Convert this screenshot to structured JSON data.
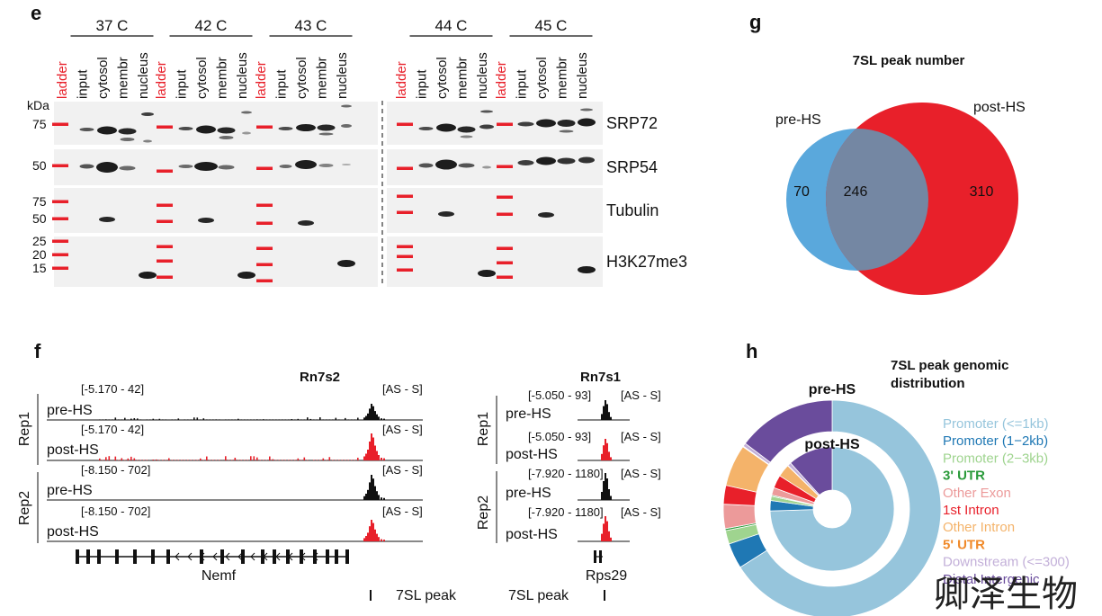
{
  "panel_e": {
    "letter": "e",
    "kda_label": "kDa",
    "temperature_groups": [
      {
        "label": "37 C",
        "lanes": [
          "ladder",
          "input",
          "cytosol",
          "membr",
          "nucleus"
        ]
      },
      {
        "label": "42 C",
        "lanes": [
          "ladder",
          "input",
          "cytosol",
          "membr",
          "nucleus"
        ]
      },
      {
        "label": "43 C",
        "lanes": [
          "ladder",
          "input",
          "cytosol",
          "membr",
          "nucleus"
        ]
      },
      {
        "label": "44 C",
        "lanes": [
          "ladder",
          "input",
          "cytosol",
          "membr",
          "nucleus"
        ]
      },
      {
        "label": "45 C",
        "lanes": [
          "ladder",
          "input",
          "cytosol",
          "membr",
          "nucleus"
        ]
      }
    ],
    "blots": [
      {
        "label": "SRP72",
        "markers": [
          "75"
        ]
      },
      {
        "label": "SRP54",
        "markers": [
          "50"
        ]
      },
      {
        "label": "Tubulin",
        "markers": [
          "75",
          "50"
        ]
      },
      {
        "label": "H3K27me3",
        "markers": [
          "25",
          "20",
          "15"
        ]
      }
    ],
    "ladder_color": "#e8202a"
  },
  "panel_f": {
    "letter": "f",
    "left_gene_title": "Rn7s2",
    "right_gene_title": "Rn7s1",
    "rep_labels": [
      "Rep1",
      "Rep2"
    ],
    "strand_label": "[AS - S]",
    "left_tracks": [
      {
        "name": "pre-HS",
        "range": "[-5.170 - 42]",
        "color": "#111111"
      },
      {
        "name": "post-HS",
        "range": "[-5.170 - 42]",
        "color": "#e8202a"
      },
      {
        "name": "pre-HS",
        "range": "[-8.150 - 702]",
        "color": "#111111"
      },
      {
        "name": "post-HS",
        "range": "[-8.150 - 702]",
        "color": "#e8202a"
      }
    ],
    "right_tracks": [
      {
        "name": "pre-HS",
        "range": "[-5.050 - 93]",
        "color": "#111111"
      },
      {
        "name": "post-HS",
        "range": "[-5.050 - 93]",
        "color": "#e8202a"
      },
      {
        "name": "pre-HS",
        "range": "[-7.920 - 1180]",
        "color": "#111111"
      },
      {
        "name": "post-HS",
        "range": "[-7.920 - 1180]",
        "color": "#e8202a"
      }
    ],
    "left_gene_model": "Nemf",
    "right_gene_model": "Rps29",
    "peak_label_left": "7SL peak",
    "peak_label_right": "7SL peak"
  },
  "panel_g": {
    "letter": "g",
    "title": "7SL peak number",
    "set_a": "pre-HS",
    "set_b": "post-HS",
    "only_a": "70",
    "overlap": "246",
    "only_b": "310",
    "color_a": "#5aa8dc",
    "color_b": "#e8202a",
    "color_overlap": "#7487a3"
  },
  "panel_h": {
    "letter": "h",
    "title_line1": "7SL peak genomic",
    "title_line2": "distribution",
    "outer_label": "pre-HS",
    "inner_label": "post-HS",
    "chart_data": {
      "type": "pie",
      "categories": [
        "Promoter (<=1kb)",
        "Promoter (1−2kb)",
        "Promoter (2−3kb)",
        "3' UTR",
        "Other Exon",
        "1st Intron",
        "Other Intron",
        "5' UTR",
        "Downstream (<=300)",
        "Distal Intergenic"
      ],
      "colors": [
        "#96c5dc",
        "#1f78b4",
        "#9fd48f",
        "#2a9a3a",
        "#ec9a9a",
        "#e8202a",
        "#f4b36a",
        "#f08a2a",
        "#c3b0d9",
        "#6a4c9c"
      ],
      "legend_bold": [
        false,
        false,
        false,
        true,
        false,
        false,
        false,
        true,
        false,
        false
      ],
      "series": [
        {
          "name": "pre-HS",
          "values": [
            66.0,
            3.8,
            2.0,
            0.3,
            3.6,
            2.8,
            6.2,
            0.1,
            0.5,
            14.7
          ]
        },
        {
          "name": "post-HS",
          "values": [
            74.5,
            2.7,
            1.1,
            0.3,
            2.0,
            3.4,
            3.3,
            0.1,
            0.9,
            11.7
          ]
        }
      ]
    }
  },
  "watermark": "卿泽生物"
}
